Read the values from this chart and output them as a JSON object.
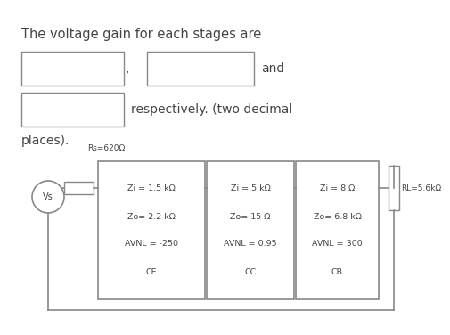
{
  "bg_color": "#ffffff",
  "title_text": "The voltage gain for each stages are",
  "title_fontsize": 10.5,
  "text_color": "#444444",
  "and_text": "and",
  "resp_text": "respectively. (two decimal",
  "places_text": "places).",
  "rs_label": "Rs=620Ω",
  "vs_label": "Vs",
  "rl_label": "RL=5.6kΩ",
  "stage1_lines": [
    "Zi = 1.5 kΩ",
    "Zo= 2.2 kΩ",
    "AVNL = -250",
    "CE"
  ],
  "stage2_lines": [
    "Zi = 5 kΩ",
    "Zo= 15 Ω",
    "AVNL = 0.95",
    "CC"
  ],
  "stage3_lines": [
    "Zi = 8 Ω",
    "Zo= 6.8 kΩ",
    "AVNL = 300",
    "CB"
  ],
  "stage_fontsize": 6.8,
  "circuit_line_color": "#888888",
  "box_edge_color": "#888888",
  "label_fontsize": 6.5
}
